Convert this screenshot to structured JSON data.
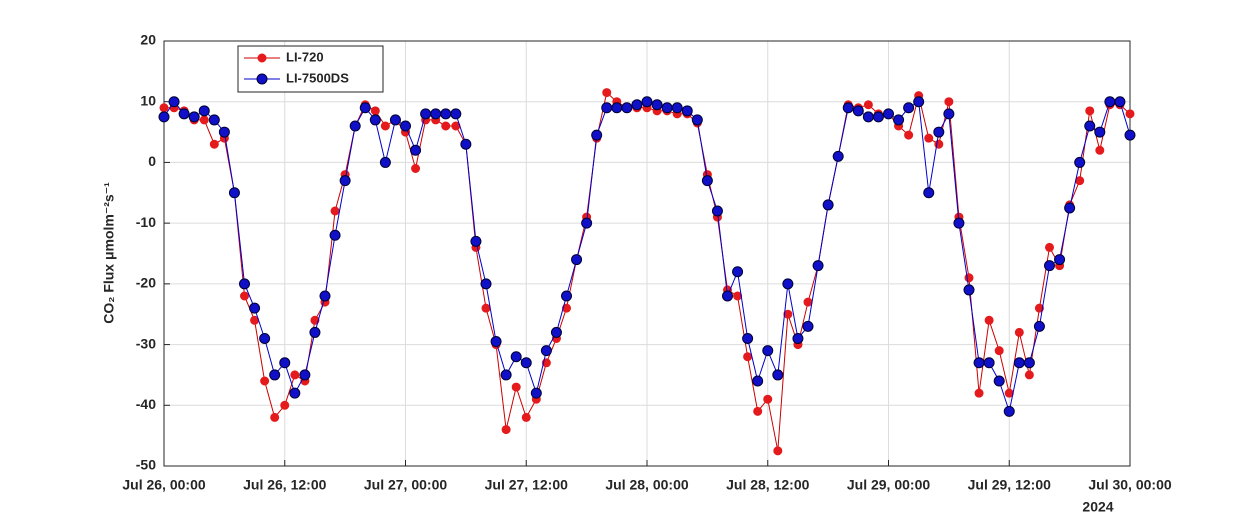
{
  "chart_data": {
    "type": "line",
    "ylabel": "CO₂ Flux μmolm⁻²s⁻¹",
    "x": [
      0,
      1,
      2,
      3,
      4,
      5,
      6,
      7,
      8,
      9,
      10,
      11,
      12,
      13,
      14,
      15,
      16,
      17,
      18,
      19,
      20,
      21,
      22,
      23,
      24,
      25,
      26,
      27,
      28,
      29,
      30,
      31,
      32,
      33,
      34,
      35,
      36,
      37,
      38,
      39,
      40,
      41,
      42,
      43,
      44,
      45,
      46,
      47,
      48,
      49,
      50,
      51,
      52,
      53,
      54,
      55,
      56,
      57,
      58,
      59,
      60,
      61,
      62,
      63,
      64,
      65,
      66,
      67,
      68,
      69,
      70,
      71,
      72,
      73,
      74,
      75,
      76,
      77,
      78,
      79,
      80,
      81,
      82,
      83,
      84,
      85,
      86,
      87,
      88,
      89,
      90,
      91,
      92,
      93,
      94,
      95,
      96
    ],
    "series": [
      {
        "name": "LI-720",
        "color": "#e41a1c",
        "line_color": "#cc0000",
        "values": [
          9,
          9,
          8.5,
          7,
          7,
          3,
          4,
          -5,
          -22,
          -26,
          -36,
          -42,
          -40,
          -35,
          -36,
          -26,
          -23,
          -8,
          -2,
          6,
          9.5,
          8.5,
          6,
          7,
          5,
          -1,
          7,
          7,
          6,
          6,
          3,
          -14,
          -24,
          -30,
          -44,
          -37,
          -42,
          -39,
          -33,
          -29,
          -24,
          -16,
          -9,
          4,
          11.5,
          10,
          9,
          9,
          9,
          8.5,
          8.5,
          8,
          8,
          6.5,
          -2,
          -9,
          -21,
          -22,
          -32,
          -41,
          -39,
          -47.5,
          -25,
          -30,
          -23,
          -17,
          -7,
          1,
          9.5,
          9,
          9.5,
          8,
          8,
          6,
          4.5,
          11,
          4,
          3,
          10,
          -9,
          -19,
          -38,
          -26,
          -31,
          -38,
          -28,
          -35,
          -24,
          -14,
          -17,
          -7,
          -3,
          8.5,
          2,
          9.5,
          9.5,
          8
        ]
      },
      {
        "name": "LI-7500DS",
        "color": "#1010c8",
        "line_color": "#0000cc",
        "values": [
          7.5,
          10,
          8,
          7.5,
          8.5,
          7,
          5,
          -5,
          -20,
          -24,
          -29,
          -35,
          -33,
          -38,
          -35,
          -28,
          -22,
          -12,
          -3,
          6,
          9,
          7,
          0,
          7,
          6,
          2,
          8,
          8,
          8,
          8,
          3,
          -13,
          -20,
          -29.5,
          -35,
          -32,
          -33,
          -38,
          -31,
          -28,
          -22,
          -16,
          -10,
          4.5,
          9,
          9,
          9,
          9.5,
          10,
          9.5,
          9,
          9,
          8.5,
          7,
          -3,
          -8,
          -22,
          -18,
          -29,
          -36,
          -31,
          -35,
          -20,
          -29,
          -27,
          -17,
          -7,
          1,
          9,
          8.5,
          7.5,
          7.5,
          8,
          7,
          9,
          10,
          -5,
          5,
          8,
          -10,
          -21,
          -33,
          -33,
          -36,
          -41,
          -33,
          -33,
          -27,
          -17,
          -16,
          -7.5,
          0,
          6,
          5,
          10,
          10,
          4.5
        ]
      }
    ],
    "xlim": [
      0,
      96
    ],
    "xticks": [
      {
        "value": 0,
        "label": "Jul 26, 00:00"
      },
      {
        "value": 12,
        "label": "Jul 26, 12:00"
      },
      {
        "value": 24,
        "label": "Jul 27, 00:00"
      },
      {
        "value": 36,
        "label": "Jul 27, 12:00"
      },
      {
        "value": 48,
        "label": "Jul 28, 00:00"
      },
      {
        "value": 60,
        "label": "Jul 28, 12:00"
      },
      {
        "value": 72,
        "label": "Jul 29, 00:00"
      },
      {
        "value": 84,
        "label": "Jul 29, 12:00"
      },
      {
        "value": 96,
        "label": "Jul 30, 00:00"
      }
    ],
    "x_secondary_label": "2024",
    "ylim": [
      -50,
      20
    ],
    "yticks": [
      -50,
      -40,
      -30,
      -20,
      -10,
      0,
      10,
      20
    ],
    "grid": true,
    "legend": "northwest"
  }
}
